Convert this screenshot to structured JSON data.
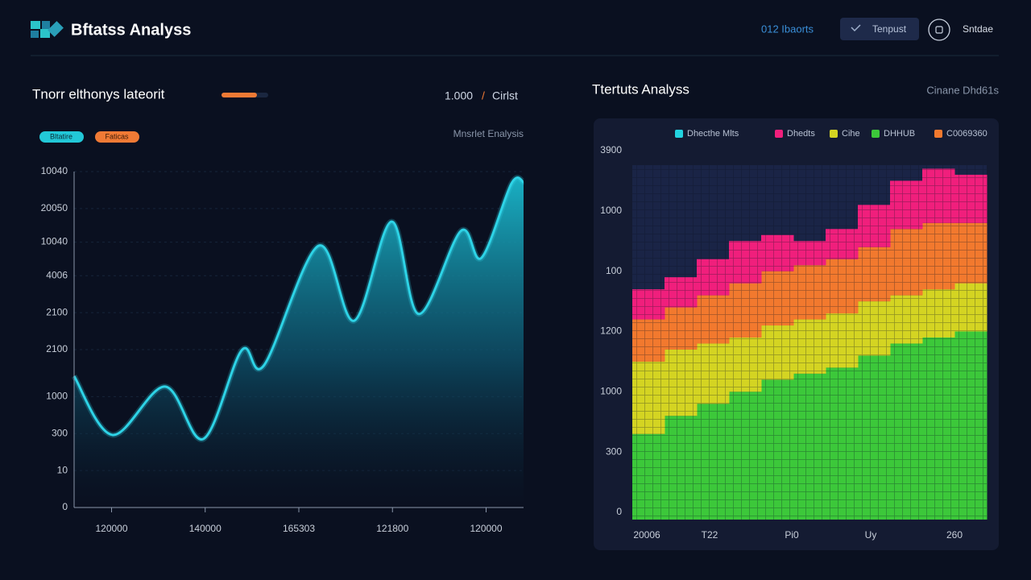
{
  "header": {
    "title": "Bftatss Analyss",
    "nav_link": "012 Ibaorts",
    "button": "Tenpust",
    "user": "Sntdae"
  },
  "left_panel": {
    "title": "Tnorr elthonys lateorit",
    "value": "1.000",
    "separator": "/",
    "unit": "Cirlst",
    "badges": [
      "Bltatire",
      "Faticas"
    ],
    "caption": "Mnsrlet Enalysis",
    "chart_data": {
      "type": "line",
      "color": "#2ed3e6",
      "grid": true,
      "x": [
        0.6,
        1.01,
        1.57,
        1.98,
        2.39,
        2.63,
        3.21,
        3.59,
        3.99,
        4.28,
        4.73,
        4.95,
        5.27,
        5.4
      ],
      "values": [
        3.91,
        2.16,
        3.6,
        2.04,
        4.68,
        4.24,
        7.79,
        5.56,
        8.51,
        5.76,
        8.23,
        7.43,
        9.64,
        9.69
      ],
      "xlim": [
        0.6,
        5.4
      ],
      "xticks": [
        {
          "value": 1,
          "label": "120000"
        },
        {
          "value": 2,
          "label": "140000"
        },
        {
          "value": 3,
          "label": "165303"
        },
        {
          "value": 4,
          "label": "121800"
        },
        {
          "value": 5,
          "label": "120000"
        }
      ],
      "ylim": [
        0,
        10
      ],
      "yticks": [
        0,
        {
          "value": 1.1,
          "label": "10"
        },
        {
          "value": 2.2,
          "label": "300"
        },
        {
          "value": 3.3,
          "label": "1000"
        },
        {
          "value": 4.7,
          "label": "2100"
        },
        {
          "value": 5.8,
          "label": "2100"
        },
        {
          "value": 6.9,
          "label": "4006"
        },
        {
          "value": 7.9,
          "label": "10040"
        },
        {
          "value": 8.9,
          "label": "20050"
        },
        {
          "value": 10,
          "label": "10040"
        }
      ]
    }
  },
  "right_panel": {
    "title": "Ttertuts Analyss",
    "caption": "Cinane Dhd61s",
    "legend_note": {
      "name": "Dhecthe Mlts",
      "color": "#22d3e0"
    },
    "chart_data": {
      "type": "stacked_area",
      "series": [
        {
          "name": "DHHUB",
          "color": "#3cc83a",
          "values": [
            1.3,
            1.6,
            1.8,
            2.0,
            2.2,
            2.3,
            2.4,
            2.6,
            2.8,
            2.9,
            3.0
          ]
        },
        {
          "name": "Cihe",
          "color": "#d4d422",
          "values": [
            1.2,
            1.1,
            1.0,
            0.9,
            0.9,
            0.9,
            0.9,
            0.9,
            0.8,
            0.8,
            0.8
          ]
        },
        {
          "name": "C0069360",
          "color": "#f2792e",
          "values": [
            0.7,
            0.7,
            0.8,
            0.9,
            0.9,
            0.9,
            0.9,
            0.9,
            1.1,
            1.1,
            1.0
          ]
        },
        {
          "name": "Dhedts",
          "color": "#f01f7c",
          "values": [
            0.5,
            0.5,
            0.6,
            0.7,
            0.6,
            0.4,
            0.5,
            0.7,
            0.8,
            0.9,
            0.8
          ]
        }
      ],
      "xlim": [
        0,
        11
      ],
      "xticks": [
        {
          "value": 0.45,
          "label": "20006"
        },
        {
          "value": 2.4,
          "label": "T22"
        },
        {
          "value": 4.95,
          "label": "Pi0"
        },
        {
          "value": 7.4,
          "label": "Uy"
        },
        {
          "value": 10,
          "label": "260"
        }
      ],
      "ylim": [
        0,
        6
      ],
      "yticks": [
        0,
        {
          "value": 1,
          "label": "300"
        },
        {
          "value": 2,
          "label": "1000"
        },
        {
          "value": 3,
          "label": "1200"
        },
        {
          "value": 4,
          "label": "100"
        },
        {
          "value": 5,
          "label": "1000"
        },
        {
          "value": 6,
          "label": "3900"
        }
      ]
    }
  }
}
